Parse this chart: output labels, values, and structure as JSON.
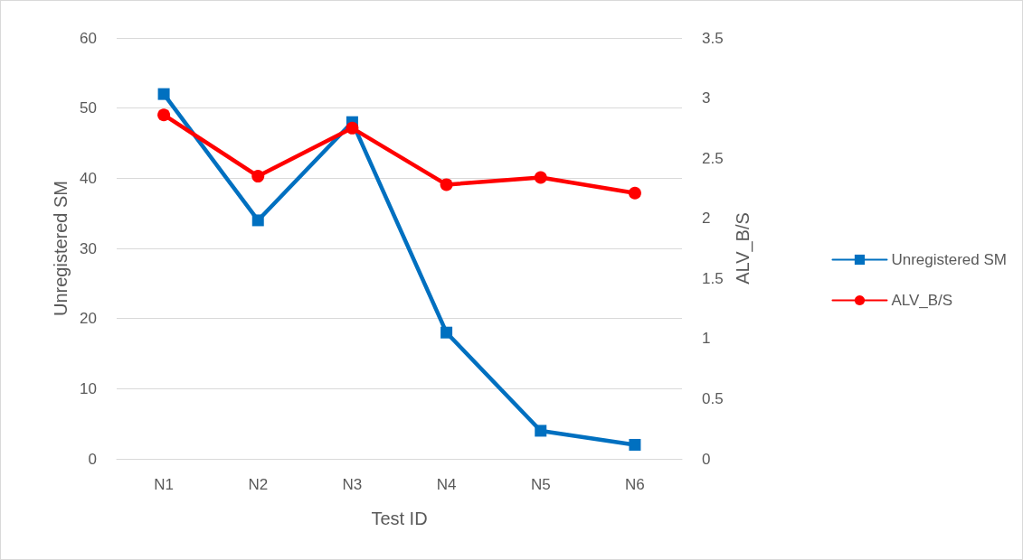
{
  "chart_data": {
    "type": "line",
    "xlabel": "Test ID",
    "ylabel": "Unregistered SM",
    "y2label": "ALV_B/S",
    "categories": [
      "N1",
      "N2",
      "N3",
      "N4",
      "N5",
      "N6"
    ],
    "series": [
      {
        "name": "Unregistered SM",
        "color": "#0070c0",
        "marker": "square",
        "values": [
          52,
          34,
          48,
          18,
          4,
          2
        ]
      },
      {
        "name": "ALV_B/S",
        "color": "#ff0000",
        "marker": "circle",
        "axis": "y2",
        "values": [
          2.86,
          2.35,
          2.75,
          2.28,
          2.34,
          2.21
        ]
      }
    ],
    "ylim": [
      0,
      60
    ],
    "yticks": [
      0,
      10,
      20,
      30,
      40,
      50,
      60
    ],
    "y2lim": [
      0,
      3.5
    ],
    "y2ticks": [
      0,
      0.5,
      1,
      1.5,
      2,
      2.5,
      3,
      3.5
    ],
    "grid": "y",
    "legend": "right",
    "line_style": "solid"
  }
}
